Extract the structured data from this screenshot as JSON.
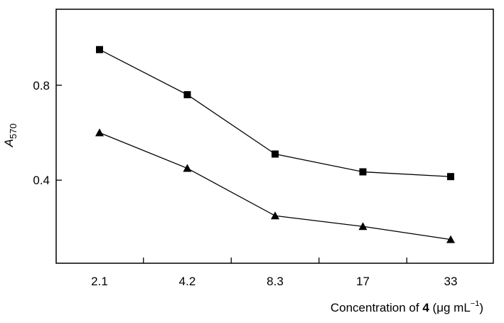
{
  "chart_data": {
    "type": "line",
    "title": "",
    "categories": [
      "2.1",
      "4.2",
      "8.3",
      "17",
      "33"
    ],
    "xlabel": {
      "prefix": "Concentration of ",
      "bold": "4",
      "unit_open": " (",
      "unit_greek": "μ",
      "unit_rest": "g mL",
      "unit_sup": "−1",
      "unit_close": ")"
    },
    "ylabel": {
      "main": "A",
      "sub": "570"
    },
    "ylim": [
      0.05,
      1.12
    ],
    "yticks": [
      0.4,
      0.8
    ],
    "ytick_labels": [
      "0.4",
      "0.8"
    ],
    "grid": false,
    "series": [
      {
        "name": "squares",
        "marker": "square",
        "values": [
          0.95,
          0.76,
          0.51,
          0.435,
          0.415
        ]
      },
      {
        "name": "triangles",
        "marker": "triangle",
        "values": [
          0.6,
          0.45,
          0.25,
          0.205,
          0.15
        ]
      }
    ]
  }
}
